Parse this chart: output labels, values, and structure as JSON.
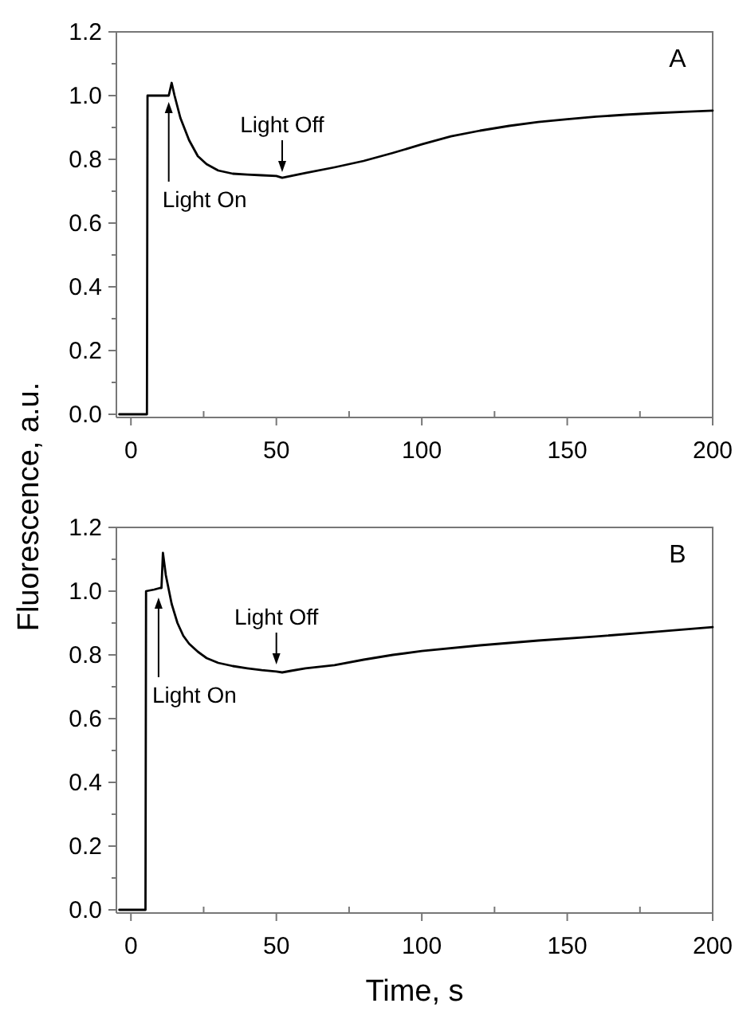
{
  "chart_data": [
    {
      "type": "line",
      "title": "A",
      "ylabel": "Fluorescence, a.u.",
      "x": [
        -4,
        0,
        5.5,
        5.7,
        8,
        10,
        12,
        13,
        13.5,
        14,
        15,
        17,
        20,
        23,
        26,
        30,
        35,
        40,
        45,
        50,
        52,
        55,
        60,
        70,
        80,
        90,
        100,
        110,
        120,
        130,
        140,
        150,
        160,
        170,
        180,
        190,
        200
      ],
      "series": [
        {
          "color": "#000000",
          "values": [
            0,
            0,
            0,
            1.0,
            1.0,
            1.0,
            1.0,
            1.0,
            1.02,
            1.04,
            1.0,
            0.93,
            0.86,
            0.81,
            0.785,
            0.765,
            0.755,
            0.752,
            0.75,
            0.748,
            0.742,
            0.748,
            0.757,
            0.775,
            0.795,
            0.82,
            0.847,
            0.872,
            0.89,
            0.905,
            0.917,
            0.926,
            0.934,
            0.94,
            0.945,
            0.949,
            0.953
          ]
        }
      ],
      "xlim": [
        -5,
        200
      ],
      "ylim": [
        -0.01,
        1.2
      ],
      "xticks": [
        0,
        {
          "value": 25,
          "label": null
        },
        50,
        {
          "value": 75,
          "label": null
        },
        100,
        {
          "value": 125,
          "label": null
        },
        150,
        {
          "value": 175,
          "label": null
        },
        200
      ],
      "yticks": [
        {
          "value": 0,
          "label": "0.0"
        },
        {
          "value": 0.1,
          "label": null
        },
        {
          "value": 0.2,
          "label": "0.2"
        },
        {
          "value": 0.3,
          "label": null
        },
        {
          "value": 0.4,
          "label": "0.4"
        },
        {
          "value": 0.5,
          "label": null
        },
        {
          "value": 0.6,
          "label": "0.6"
        },
        {
          "value": 0.7,
          "label": null
        },
        {
          "value": 0.8,
          "label": "0.8"
        },
        {
          "value": 0.9,
          "label": null
        },
        {
          "value": 1.0,
          "label": "1.0"
        },
        {
          "value": 1.1,
          "label": null
        },
        {
          "value": 1.2,
          "label": "1.2"
        }
      ],
      "annotations": [
        {
          "text": "Light On",
          "x": 13,
          "y": 0.98
        },
        {
          "text": "Light Off",
          "x": 52,
          "y": 0.76
        }
      ],
      "grid": false,
      "marker": "none",
      "line_style": "solid"
    },
    {
      "type": "line",
      "title": "B",
      "xlabel": "Time, s",
      "x": [
        -4,
        0,
        5,
        5.2,
        8,
        10,
        10.5,
        11,
        12,
        14,
        16,
        18,
        20,
        23,
        26,
        30,
        35,
        40,
        45,
        50,
        52,
        55,
        60,
        70,
        80,
        90,
        100,
        120,
        140,
        160,
        180,
        200
      ],
      "series": [
        {
          "color": "#000000",
          "values": [
            0,
            0,
            0,
            1.0,
            1.005,
            1.01,
            1.01,
            1.12,
            1.05,
            0.96,
            0.9,
            0.86,
            0.835,
            0.81,
            0.79,
            0.775,
            0.765,
            0.758,
            0.752,
            0.748,
            0.745,
            0.75,
            0.758,
            0.768,
            0.785,
            0.8,
            0.812,
            0.83,
            0.845,
            0.858,
            0.872,
            0.887
          ]
        }
      ],
      "xlim": [
        -5,
        200
      ],
      "ylim": [
        -0.01,
        1.2
      ],
      "xticks": [
        0,
        {
          "value": 25,
          "label": null
        },
        50,
        {
          "value": 75,
          "label": null
        },
        100,
        {
          "value": 125,
          "label": null
        },
        150,
        {
          "value": 175,
          "label": null
        },
        200
      ],
      "yticks": [
        {
          "value": 0,
          "label": "0.0"
        },
        {
          "value": 0.1,
          "label": null
        },
        {
          "value": 0.2,
          "label": "0.2"
        },
        {
          "value": 0.3,
          "label": null
        },
        {
          "value": 0.4,
          "label": "0.4"
        },
        {
          "value": 0.5,
          "label": null
        },
        {
          "value": 0.6,
          "label": "0.6"
        },
        {
          "value": 0.7,
          "label": null
        },
        {
          "value": 0.8,
          "label": "0.8"
        },
        {
          "value": 0.9,
          "label": null
        },
        {
          "value": 1.0,
          "label": "1.0"
        },
        {
          "value": 1.1,
          "label": null
        },
        {
          "value": 1.2,
          "label": "1.2"
        }
      ],
      "annotations": [
        {
          "text": "Light On",
          "x": 9.5,
          "y": 0.98
        },
        {
          "text": "Light Off",
          "x": 50,
          "y": 0.77
        }
      ],
      "grid": false,
      "marker": "none",
      "line_style": "solid"
    }
  ]
}
